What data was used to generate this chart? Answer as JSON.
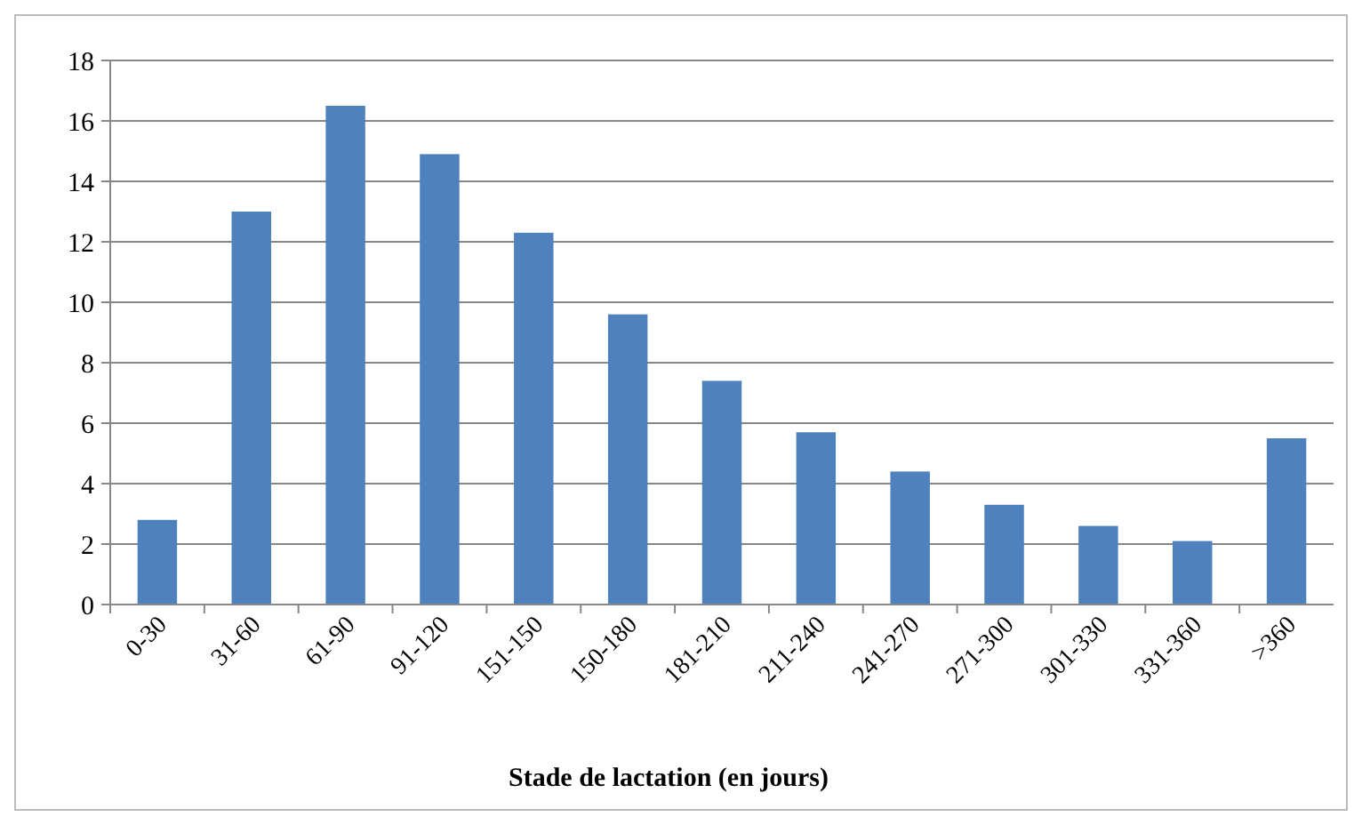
{
  "chart_data": {
    "type": "bar",
    "xlabel": "Stade de lactation (en jours)",
    "categories": [
      "0-30",
      "31-60",
      "61-90",
      "91-120",
      "151-150",
      "150-180",
      "181-210",
      "211-240",
      "241-270",
      "271-300",
      "301-330",
      "331-360",
      ">360"
    ],
    "values": [
      2.8,
      13,
      16.5,
      14.9,
      12.3,
      9.6,
      7.4,
      5.7,
      4.4,
      3.3,
      2.6,
      2.1,
      5.5
    ],
    "color": "#4f81bd",
    "ylim": [
      0,
      18
    ],
    "yticks": [
      0,
      2,
      4,
      6,
      8,
      10,
      12,
      14,
      16,
      18
    ],
    "grid": "y"
  }
}
